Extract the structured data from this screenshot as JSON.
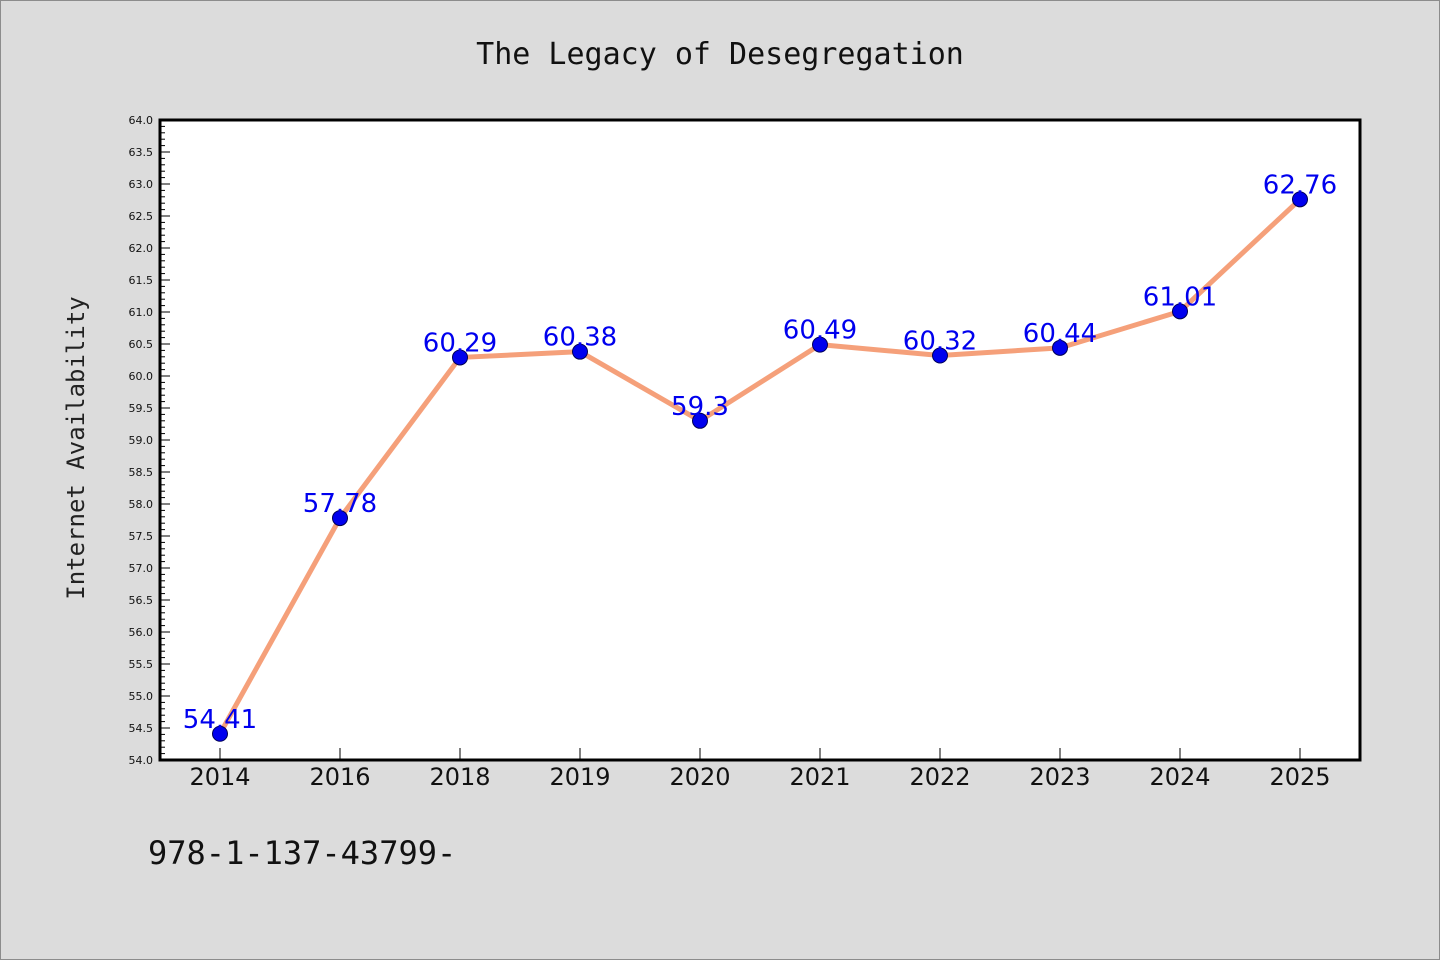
{
  "chart_data": {
    "type": "line",
    "title": "The Legacy of Desegregation",
    "xlabel": "",
    "ylabel": "Internet Availability",
    "categories": [
      "2014",
      "2016",
      "2018",
      "2019",
      "2020",
      "2021",
      "2022",
      "2023",
      "2024",
      "2025"
    ],
    "series": [
      {
        "values": [
          54.41,
          57.78,
          60.29,
          60.38,
          59.3,
          60.49,
          60.32,
          60.44,
          61.01,
          62.76
        ],
        "labels": [
          "54.41",
          "57.78",
          "60.29",
          "60.38",
          "59.3",
          "60.49",
          "60.32",
          "60.44",
          "61.01",
          "62.76"
        ],
        "line_color": "#f5a07a",
        "marker_color": "#0000ee",
        "label_color": "#0000ee"
      }
    ],
    "ylim": [
      54.0,
      64.0
    ],
    "ytick_labels": [
      "54.0",
      "54.5",
      "55.0",
      "55.5",
      "56.0",
      "56.5",
      "57.0",
      "57.5",
      "58.0",
      "58.5",
      "59.0",
      "59.5",
      "60.0",
      "60.5",
      "61.0",
      "61.5",
      "62.0",
      "62.5",
      "63.0",
      "63.5",
      "64.0"
    ],
    "grid": false,
    "legend": "none"
  },
  "footer": {
    "isbn": "978-1-137-43799-"
  },
  "colors": {
    "background": "#dcdcdc",
    "plot_background": "#ffffff",
    "axis": "#000000"
  }
}
